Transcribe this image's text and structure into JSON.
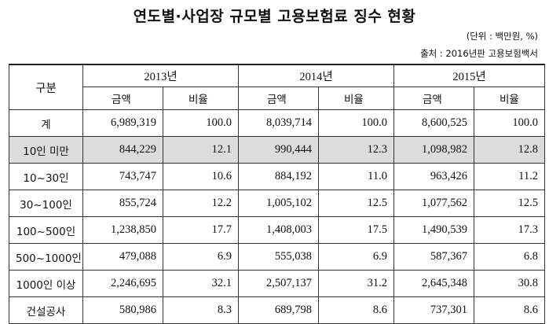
{
  "title": "연도별·사업장 규모별 고용보험료 징수 현황",
  "unit": "(단위 : 백만원, %)",
  "source": "출처 : 2016년판 고용보험백서",
  "table": {
    "category_header": "구분",
    "years": [
      "2013년",
      "2014년",
      "2015년"
    ],
    "amount_header": "금액",
    "ratio_header": "비율",
    "rows": [
      {
        "category": "계",
        "values": [
          "6,989,319",
          "100.0",
          "8,039,714",
          "100.0",
          "8,600,525",
          "100.0"
        ],
        "highlight": false
      },
      {
        "category": "10인 미만",
        "values": [
          "844,229",
          "12.1",
          "990,444",
          "12.3",
          "1,098,982",
          "12.8"
        ],
        "highlight": true
      },
      {
        "category": "10~30인",
        "values": [
          "743,747",
          "10.6",
          "884,192",
          "11.0",
          "963,426",
          "11.2"
        ],
        "highlight": false
      },
      {
        "category": "30~100인",
        "values": [
          "855,724",
          "12.2",
          "1,005,102",
          "12.5",
          "1,077,562",
          "12.5"
        ],
        "highlight": false
      },
      {
        "category": "100~500인",
        "values": [
          "1,238,850",
          "17.7",
          "1,408,003",
          "17.5",
          "1,490,539",
          "17.3"
        ],
        "highlight": false
      },
      {
        "category": "500~1000인",
        "values": [
          "479,088",
          "6.9",
          "555,038",
          "6.9",
          "587,367",
          "6.8"
        ],
        "highlight": false
      },
      {
        "category": "1000인 이상",
        "values": [
          "2,246,695",
          "32.1",
          "2,507,137",
          "31.2",
          "2,645,348",
          "30.8"
        ],
        "highlight": false
      },
      {
        "category": "건설공사",
        "values": [
          "580,986",
          "8.3",
          "689,798",
          "8.6",
          "737,301",
          "8.6"
        ],
        "highlight": false
      }
    ]
  }
}
